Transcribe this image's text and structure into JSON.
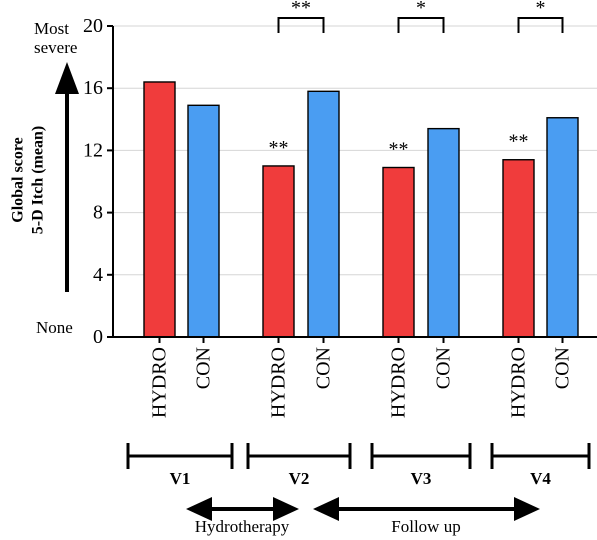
{
  "chart_data": {
    "type": "bar",
    "ylabel_lines": [
      "Global score",
      "5-D Itch (mean)"
    ],
    "yscale_labels": {
      "top": [
        "Most",
        "severe"
      ],
      "bottom": "None"
    },
    "ylim": [
      0,
      20
    ],
    "yticks": [
      0,
      4,
      8,
      12,
      16,
      20
    ],
    "grid": true,
    "categories": [
      "HYDRO",
      "CON",
      "HYDRO",
      "CON",
      "HYDRO",
      "CON",
      "HYDRO",
      "CON"
    ],
    "series": [
      {
        "values": [
          16.4,
          14.9,
          11.0,
          15.8,
          10.9,
          13.4,
          11.4,
          14.1
        ]
      }
    ],
    "bar_colors": {
      "HYDRO": "#f03c3c",
      "CON": "#4a9df2"
    },
    "visits": [
      "V1",
      "V2",
      "V3",
      "V4"
    ],
    "hydro_marks": [
      "",
      "**",
      "**",
      "**"
    ],
    "brackets": [
      "**",
      "*",
      "*"
    ],
    "phases": [
      {
        "label": "Hydrotherapy"
      },
      {
        "label": "Follow up"
      }
    ]
  }
}
